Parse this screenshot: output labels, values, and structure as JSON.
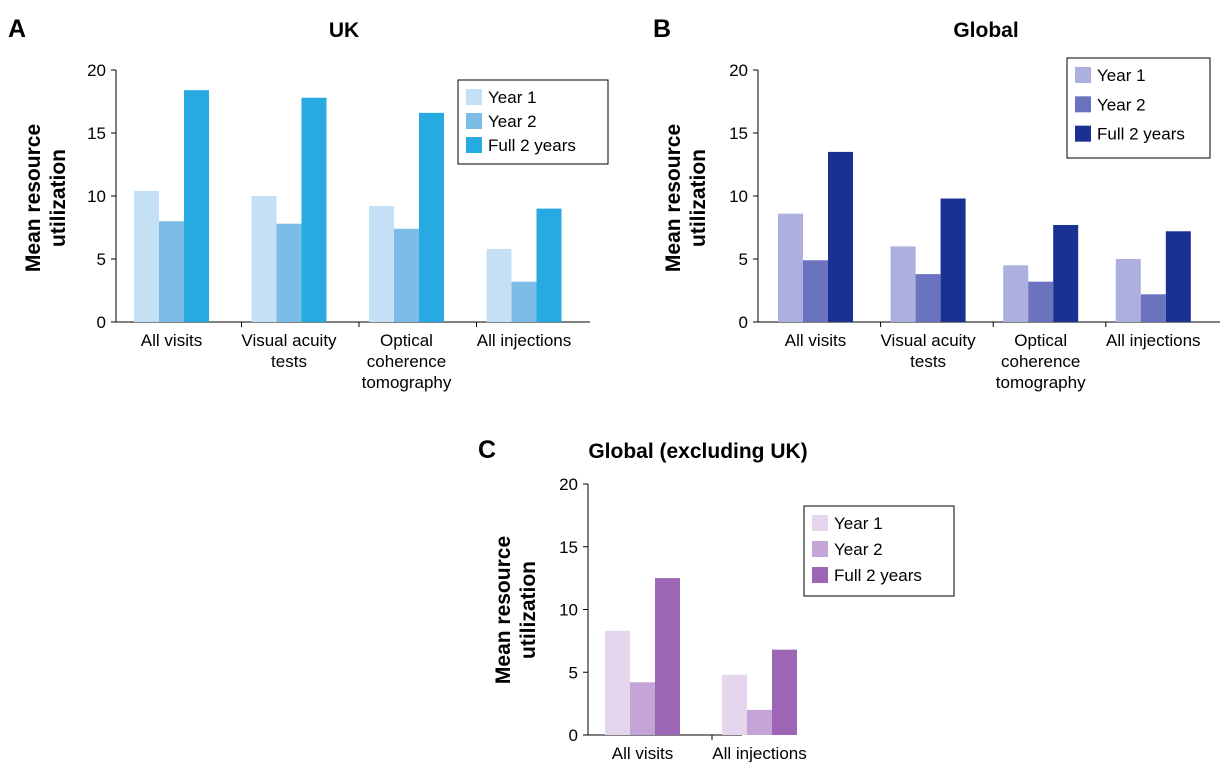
{
  "chart_data": [
    {
      "panel": "A",
      "type": "bar",
      "title": "UK",
      "ylabel": "Mean resource utilization",
      "xlabel": "",
      "ylim": [
        0,
        20
      ],
      "yticks": [
        0,
        5,
        10,
        15,
        20
      ],
      "categories": [
        "All visits",
        "Visual acuity tests",
        "Optical coherence tomography",
        "All injections"
      ],
      "series": [
        {
          "name": "Year 1",
          "color": "#c5e0f5",
          "values": [
            10.4,
            10.0,
            9.2,
            5.8
          ]
        },
        {
          "name": "Year 2",
          "color": "#7bbde6",
          "values": [
            8.0,
            7.8,
            7.4,
            3.2
          ]
        },
        {
          "name": "Full 2 years",
          "color": "#27aae1",
          "values": [
            18.4,
            17.8,
            16.6,
            9.0
          ]
        }
      ],
      "legend": "top-right",
      "grid": false
    },
    {
      "panel": "B",
      "type": "bar",
      "title": "Global",
      "ylabel": "Mean resource utilization",
      "xlabel": "",
      "ylim": [
        0,
        20
      ],
      "yticks": [
        0,
        5,
        10,
        15,
        20
      ],
      "categories": [
        "All visits",
        "Visual acuity tests",
        "Optical coherence tomography",
        "All injections"
      ],
      "series": [
        {
          "name": "Year 1",
          "color": "#adb0de",
          "values": [
            8.6,
            6.0,
            4.5,
            5.0
          ]
        },
        {
          "name": "Year 2",
          "color": "#6b72be",
          "values": [
            4.9,
            3.8,
            3.2,
            2.2
          ]
        },
        {
          "name": "Full 2 years",
          "color": "#1a3092",
          "values": [
            13.5,
            9.8,
            7.7,
            7.2
          ]
        }
      ],
      "legend": "top-right",
      "grid": false
    },
    {
      "panel": "C",
      "type": "bar",
      "title": "Global (excluding UK)",
      "ylabel": "Mean resource utilization",
      "xlabel": "",
      "ylim": [
        0,
        20
      ],
      "yticks": [
        0,
        5,
        10,
        15,
        20
      ],
      "categories": [
        "All visits",
        "All injections"
      ],
      "series": [
        {
          "name": "Year 1",
          "color": "#e5d6ee",
          "values": [
            8.3,
            4.8
          ]
        },
        {
          "name": "Year 2",
          "color": "#c4a3d6",
          "values": [
            4.2,
            2.0
          ]
        },
        {
          "name": "Full 2 years",
          "color": "#9c66b5",
          "values": [
            12.5,
            6.8
          ]
        }
      ],
      "legend": "top-right",
      "grid": false
    }
  ]
}
